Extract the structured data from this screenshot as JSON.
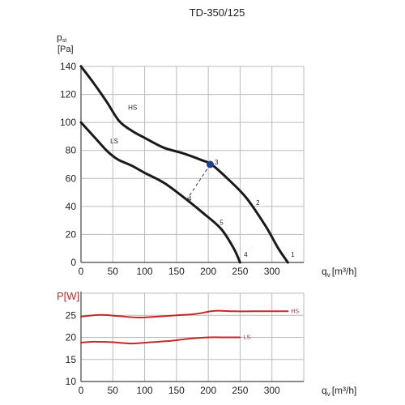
{
  "chart_data": [
    {
      "type": "line",
      "title": "TD-350/125",
      "ylabel": "p",
      "ylabel_sub": "st",
      "yunit": "[Pa]",
      "xlabel": "q",
      "xlabel_sub": "v",
      "xunit": "[m³/h]",
      "xlim": [
        0,
        350
      ],
      "ylim": [
        0,
        140
      ],
      "x_ticks": [
        "0",
        "50",
        "100",
        "150",
        "200",
        "250",
        "300"
      ],
      "y_ticks": [
        "0",
        "20",
        "40",
        "60",
        "80",
        "100",
        "120",
        "140"
      ],
      "grid": true,
      "colors": {
        "curve": "#1a1a1a",
        "grid": "#bbbbbb",
        "point": "#1f3f8f"
      },
      "series": [
        {
          "name": "HS",
          "x": [
            0,
            20,
            40,
            60,
            80,
            100,
            130,
            160,
            190,
            205,
            230,
            260,
            290,
            310,
            325
          ],
          "y": [
            140,
            128,
            115,
            101,
            94,
            89,
            82,
            78,
            73,
            70,
            60,
            46,
            26,
            10,
            0
          ]
        },
        {
          "name": "LS",
          "x": [
            0,
            20,
            40,
            50,
            60,
            80,
            100,
            130,
            160,
            190,
            220,
            240,
            250
          ],
          "y": [
            100,
            90,
            80,
            76,
            73,
            69,
            64,
            57,
            47,
            36,
            24,
            10,
            0
          ]
        }
      ],
      "operating_point": {
        "x": 203,
        "y": 70,
        "label": "3"
      },
      "dashed_line": {
        "from": [
          203,
          70
        ],
        "to": [
          165,
          44
        ]
      },
      "point_labels": [
        {
          "text": "HS",
          "x": 74,
          "y": 109
        },
        {
          "text": "LS",
          "x": 46,
          "y": 85
        },
        {
          "text": "3",
          "x": 210,
          "y": 70
        },
        {
          "text": "2",
          "x": 275,
          "y": 41
        },
        {
          "text": "1",
          "x": 330,
          "y": 4
        },
        {
          "text": "4",
          "x": 168,
          "y": 44
        },
        {
          "text": "5",
          "x": 218,
          "y": 27
        },
        {
          "text": "4",
          "x": 256,
          "y": 4
        }
      ]
    },
    {
      "type": "line",
      "ylabel": "P[W]",
      "xlabel": "q",
      "xlabel_sub": "v",
      "xunit": "[m³/h]",
      "xlim": [
        0,
        350
      ],
      "ylim": [
        10,
        30
      ],
      "x_ticks": [
        "0",
        "50",
        "100",
        "150",
        "200",
        "250",
        "300"
      ],
      "y_ticks": [
        "10",
        "15",
        "20",
        "25"
      ],
      "grid": true,
      "colors": {
        "curve": "#c62828",
        "grid": "#bbbbbb"
      },
      "series": [
        {
          "name": "HS",
          "x": [
            0,
            30,
            60,
            90,
            120,
            150,
            180,
            210,
            240,
            270,
            300,
            325
          ],
          "y": [
            24.7,
            25.1,
            24.8,
            24.5,
            24.7,
            25.0,
            25.3,
            26.0,
            25.9,
            25.9,
            25.9,
            25.9
          ]
        },
        {
          "name": "LS",
          "x": [
            0,
            20,
            50,
            80,
            110,
            140,
            170,
            200,
            230,
            250
          ],
          "y": [
            18.8,
            19.0,
            18.9,
            18.6,
            18.9,
            19.2,
            19.7,
            20.0,
            20.0,
            20.0
          ]
        }
      ]
    }
  ]
}
